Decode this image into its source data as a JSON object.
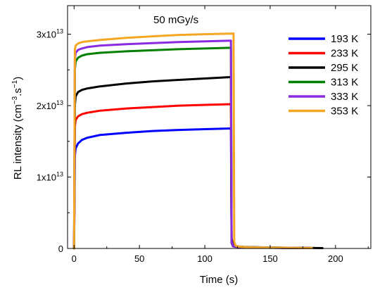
{
  "chart_data": {
    "type": "line",
    "annotation": "50 mGy/s",
    "xlabel": "Time (s)",
    "ylabel_main": "RL intensity (cm",
    "ylabel_exp1": "−3",
    "ylabel_mid": ".s",
    "ylabel_exp2": "−1",
    "ylabel_end": ")",
    "xlim": [
      -5,
      227
    ],
    "ylim": [
      0,
      34000000000000.0
    ],
    "x_ticks": [
      0,
      50,
      100,
      150,
      200
    ],
    "x_tick_labels": [
      "0",
      "50",
      "100",
      "150",
      "200"
    ],
    "y_ticks": [
      0,
      10000000000000.0,
      20000000000000.0,
      30000000000000.0
    ],
    "y_tick_labels": [
      {
        "mant": "0",
        "exp": ""
      },
      {
        "mant": "1x10",
        "exp": "13"
      },
      {
        "mant": "2x10",
        "exp": "13"
      },
      {
        "mant": "3x10",
        "exp": "13"
      }
    ],
    "grid": false,
    "legend_position": "top-right",
    "series": [
      {
        "name": "193 K",
        "color": "#0000ff",
        "x": [
          0,
          0.6,
          1.2,
          3,
          6,
          10,
          20,
          40,
          60,
          80,
          100,
          120,
          120.5,
          121.5,
          123,
          126,
          130,
          140,
          150,
          160,
          170,
          180
        ],
        "y": [
          0,
          13000000000000.0,
          14000000000000.0,
          14700000000000.0,
          15200000000000.0,
          15500000000000.0,
          15900000000000.0,
          16200000000000.0,
          16450000000000.0,
          16600000000000.0,
          16700000000000.0,
          16800000000000.0,
          800000000000.0,
          320000000000.0,
          250000000000.0,
          200000000000.0,
          160000000000.0,
          125000000000.0,
          100000000000.0,
          80000000000.0,
          60000000000.0,
          45000000000.0
        ]
      },
      {
        "name": "233 K",
        "color": "#ff0000",
        "x": [
          0,
          0.6,
          1.2,
          3,
          6,
          10,
          20,
          40,
          60,
          80,
          100,
          120,
          120.5,
          121.5,
          123,
          126,
          130,
          140,
          150,
          160,
          170,
          180
        ],
        "y": [
          0,
          17000000000000.0,
          18000000000000.0,
          18500000000000.0,
          18800000000000.0,
          19000000000000.0,
          19300000000000.0,
          19600000000000.0,
          19800000000000.0,
          20000000000000.0,
          20100000000000.0,
          20200000000000.0,
          900000000000.0,
          360000000000.0,
          280000000000.0,
          220000000000.0,
          180000000000.0,
          140000000000.0,
          110000000000.0,
          90000000000.0,
          70000000000.0,
          55000000000.0
        ]
      },
      {
        "name": "295 K",
        "color": "#000000",
        "x": [
          0,
          0.6,
          1.2,
          3,
          6,
          10,
          20,
          40,
          60,
          80,
          100,
          120,
          120.5,
          121.5,
          123,
          126,
          130,
          140,
          150,
          160,
          170,
          180,
          190
        ],
        "y": [
          0,
          20000000000000.0,
          21300000000000.0,
          21900000000000.0,
          22200000000000.0,
          22400000000000.0,
          22700000000000.0,
          23100000000000.0,
          23400000000000.0,
          23600000000000.0,
          23800000000000.0,
          24000000000000.0,
          1400000000000.0,
          550000000000.0,
          350000000000.0,
          280000000000.0,
          220000000000.0,
          170000000000.0,
          135000000000.0,
          110000000000.0,
          90000000000.0,
          70000000000.0,
          50000000000.0
        ]
      },
      {
        "name": "313 K",
        "color": "#008000",
        "x": [
          0,
          0.6,
          1.2,
          3,
          6,
          10,
          20,
          40,
          60,
          80,
          100,
          120,
          120.5,
          121.5,
          123,
          126,
          130,
          140,
          150,
          160,
          170,
          180
        ],
        "y": [
          0,
          25000000000000.0,
          26200000000000.0,
          26700000000000.0,
          27000000000000.0,
          27200000000000.0,
          27400000000000.0,
          27600000000000.0,
          27750000000000.0,
          27900000000000.0,
          28000000000000.0,
          28100000000000.0,
          1000000000000.0,
          400000000000.0,
          300000000000.0,
          240000000000.0,
          190000000000.0,
          150000000000.0,
          120000000000.0,
          95000000000.0,
          75000000000.0,
          55000000000.0
        ]
      },
      {
        "name": "333 K",
        "color": "#8a2be2",
        "x": [
          0,
          0.6,
          1.2,
          3,
          6,
          10,
          20,
          40,
          60,
          80,
          100,
          120,
          120.5,
          121.5,
          123,
          126,
          130,
          140,
          150,
          160,
          170,
          180
        ],
        "y": [
          0,
          26500000000000.0,
          27400000000000.0,
          27800000000000.0,
          28000000000000.0,
          28200000000000.0,
          28400000000000.0,
          28600000000000.0,
          28750000000000.0,
          28900000000000.0,
          29000000000000.0,
          29100000000000.0,
          1000000000000.0,
          400000000000.0,
          300000000000.0,
          240000000000.0,
          190000000000.0,
          150000000000.0,
          120000000000.0,
          95000000000.0,
          75000000000.0,
          55000000000.0
        ]
      },
      {
        "name": "353 K",
        "color": "#f5a623",
        "x": [
          0,
          0.6,
          1.2,
          3,
          6,
          10,
          20,
          40,
          60,
          80,
          100,
          122,
          122.5,
          123.5,
          125,
          128,
          132,
          140,
          150,
          160,
          170,
          182
        ],
        "y": [
          0,
          27800000000000.0,
          28400000000000.0,
          28700000000000.0,
          28900000000000.0,
          29000000000000.0,
          29200000000000.0,
          29500000000000.0,
          29700000000000.0,
          29900000000000.0,
          30000000000000.0,
          30100000000000.0,
          1000000000000.0,
          400000000000.0,
          300000000000.0,
          240000000000.0,
          190000000000.0,
          150000000000.0,
          120000000000.0,
          95000000000.0,
          75000000000.0,
          50000000000.0
        ]
      }
    ]
  }
}
